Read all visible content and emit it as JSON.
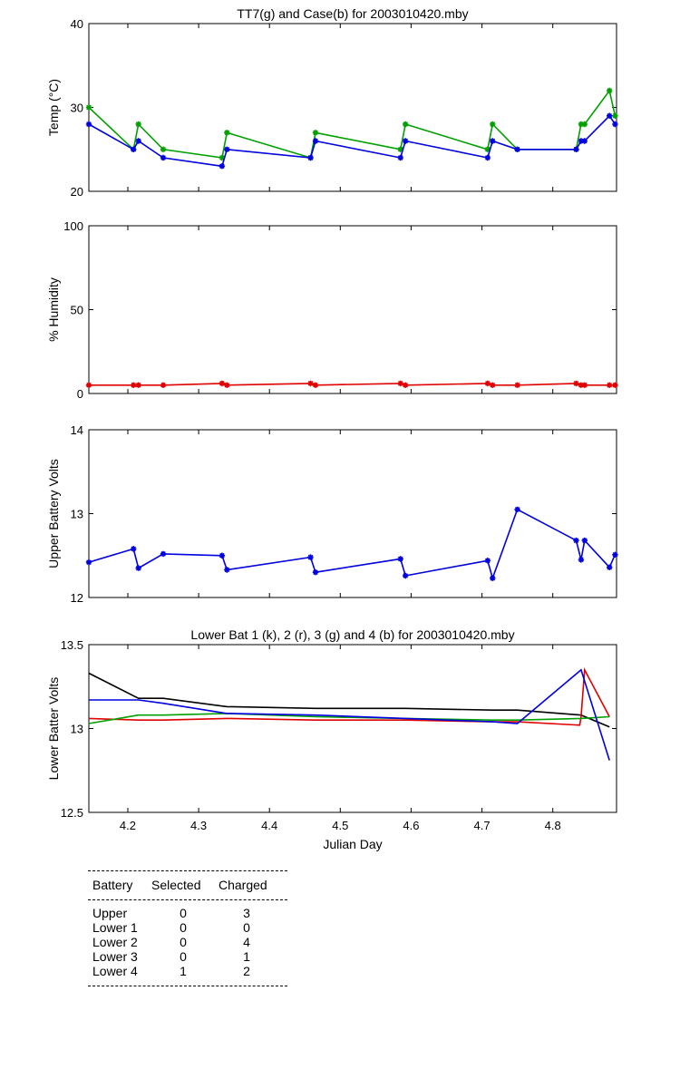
{
  "chart_data": [
    {
      "type": "line",
      "title": "TT7(g) and Case(b) for 2003010420.mby",
      "xlabel": "",
      "ylabel": "Temp  (°C)",
      "xlim": [
        4.145,
        4.89
      ],
      "ylim": [
        20,
        40
      ],
      "yticks": [
        20,
        30,
        40
      ],
      "grid": false,
      "series": [
        {
          "color": "#00a000",
          "marker": "*",
          "x": [
            4.145,
            4.208,
            4.215,
            4.25,
            4.333,
            4.34,
            4.458,
            4.465,
            4.585,
            4.592,
            4.708,
            4.715,
            4.75,
            4.833,
            4.84,
            4.845,
            4.88,
            4.888
          ],
          "y": [
            30,
            25,
            28,
            25,
            24,
            27,
            24,
            27,
            25,
            28,
            25,
            28,
            25,
            25,
            28,
            28,
            32,
            29
          ]
        },
        {
          "color": "#0000e0",
          "marker": "*",
          "x": [
            4.145,
            4.208,
            4.215,
            4.25,
            4.333,
            4.34,
            4.458,
            4.465,
            4.585,
            4.592,
            4.708,
            4.715,
            4.75,
            4.833,
            4.84,
            4.845,
            4.88,
            4.888
          ],
          "y": [
            28,
            25,
            26,
            24,
            23,
            25,
            24,
            26,
            24,
            26,
            24,
            26,
            25,
            25,
            26,
            26,
            29,
            28
          ]
        }
      ]
    },
    {
      "type": "line",
      "title": "",
      "xlabel": "",
      "ylabel": "% Humidity",
      "xlim": [
        4.145,
        4.89
      ],
      "ylim": [
        0,
        100
      ],
      "yticks": [
        0,
        50,
        100
      ],
      "grid": false,
      "series": [
        {
          "color": "#e00000",
          "marker": "*",
          "x": [
            4.145,
            4.208,
            4.215,
            4.25,
            4.333,
            4.34,
            4.458,
            4.465,
            4.585,
            4.592,
            4.708,
            4.715,
            4.75,
            4.833,
            4.84,
            4.845,
            4.88,
            4.888
          ],
          "y": [
            5,
            5,
            5,
            5,
            6,
            5,
            6,
            5,
            6,
            5,
            6,
            5,
            5,
            6,
            5,
            5,
            5,
            5
          ]
        }
      ]
    },
    {
      "type": "line",
      "title": "",
      "xlabel": "",
      "ylabel": "Upper Battery Volts",
      "xlim": [
        4.145,
        4.89
      ],
      "ylim": [
        12,
        14
      ],
      "yticks": [
        12,
        13,
        14
      ],
      "grid": false,
      "series": [
        {
          "color": "#0000e0",
          "marker": "*",
          "x": [
            4.145,
            4.208,
            4.215,
            4.25,
            4.333,
            4.34,
            4.458,
            4.465,
            4.585,
            4.592,
            4.708,
            4.715,
            4.75,
            4.833,
            4.84,
            4.845,
            4.88,
            4.888
          ],
          "y": [
            12.42,
            12.58,
            12.35,
            12.52,
            12.5,
            12.33,
            12.48,
            12.3,
            12.46,
            12.26,
            12.44,
            12.23,
            13.05,
            12.68,
            12.45,
            12.68,
            12.36,
            12.51
          ]
        }
      ]
    },
    {
      "type": "line",
      "title": "Lower Bat 1 (k), 2 (r), 3 (g) and 4 (b) for 2003010420.mby",
      "xlabel": "Julian Day",
      "ylabel": "Lower Batter Volts",
      "xlim": [
        4.145,
        4.89
      ],
      "ylim": [
        12.5,
        13.5
      ],
      "yticks": [
        12.5,
        13,
        13.5
      ],
      "xticks": [
        4.2,
        4.3,
        4.4,
        4.5,
        4.6,
        4.7,
        4.8
      ],
      "grid": false,
      "series": [
        {
          "color": "#000000",
          "x": [
            4.145,
            4.215,
            4.25,
            4.34,
            4.465,
            4.592,
            4.715,
            4.75,
            4.84,
            4.88
          ],
          "y": [
            13.33,
            13.18,
            13.18,
            13.13,
            13.12,
            13.12,
            13.11,
            13.11,
            13.08,
            13.01
          ]
        },
        {
          "color": "#e00000",
          "x": [
            4.145,
            4.215,
            4.25,
            4.34,
            4.465,
            4.592,
            4.715,
            4.75,
            4.838,
            4.84,
            4.845,
            4.88
          ],
          "y": [
            13.06,
            13.05,
            13.05,
            13.06,
            13.05,
            13.05,
            13.04,
            13.04,
            13.02,
            13.07,
            13.35,
            13.07
          ]
        },
        {
          "color": "#00a000",
          "x": [
            4.145,
            4.215,
            4.25,
            4.34,
            4.465,
            4.592,
            4.715,
            4.75,
            4.84,
            4.88
          ],
          "y": [
            13.03,
            13.08,
            13.08,
            13.09,
            13.07,
            13.06,
            13.05,
            13.05,
            13.06,
            13.07
          ]
        },
        {
          "color": "#0000e0",
          "x": [
            4.145,
            4.215,
            4.25,
            4.34,
            4.465,
            4.592,
            4.715,
            4.75,
            4.84,
            4.88
          ],
          "y": [
            13.17,
            13.17,
            13.15,
            13.09,
            13.08,
            13.06,
            13.04,
            13.03,
            13.35,
            12.81
          ]
        }
      ]
    }
  ],
  "battery_table": {
    "headers": [
      "Battery",
      "Selected",
      "Charged"
    ],
    "rows": [
      {
        "name": "Upper",
        "selected": "0",
        "charged": "3"
      },
      {
        "name": "Lower 1",
        "selected": "0",
        "charged": "0"
      },
      {
        "name": "Lower 2",
        "selected": "0",
        "charged": "4"
      },
      {
        "name": "Lower 3",
        "selected": "0",
        "charged": "1"
      },
      {
        "name": "Lower 4",
        "selected": "1",
        "charged": "2"
      }
    ]
  }
}
